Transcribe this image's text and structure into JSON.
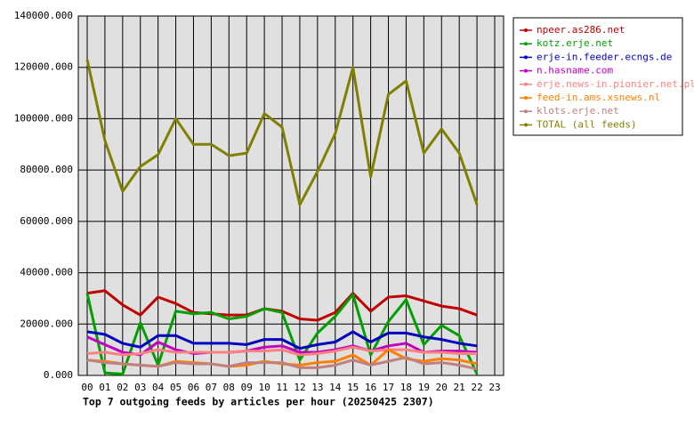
{
  "chart_data": {
    "type": "line",
    "title": "Top 7 outgoing feeds by articles per hour (20250425 2307)",
    "categories": [
      "00",
      "01",
      "02",
      "03",
      "04",
      "05",
      "06",
      "07",
      "08",
      "09",
      "10",
      "11",
      "12",
      "13",
      "14",
      "15",
      "16",
      "17",
      "18",
      "19",
      "20",
      "21",
      "22",
      "23"
    ],
    "ylim": [
      0,
      140000
    ],
    "yticks": [
      {
        "value": 0,
        "label": "0.000"
      },
      {
        "value": 20000,
        "label": "20000.000"
      },
      {
        "value": 40000,
        "label": "40000.000"
      },
      {
        "value": 60000,
        "label": "60000.000"
      },
      {
        "value": 80000,
        "label": "80000.000"
      },
      {
        "value": 100000,
        "label": "100000.000"
      },
      {
        "value": 120000,
        "label": "120000.000"
      },
      {
        "value": 140000,
        "label": "140000.000"
      }
    ],
    "grid": true,
    "legend": "right",
    "series": [
      {
        "name": "npeer.as286.net",
        "color": "#c00000",
        "values": [
          32000,
          33000,
          27500,
          23500,
          30500,
          28000,
          24500,
          24000,
          23500,
          23500,
          26000,
          25000,
          22000,
          21500,
          24500,
          32000,
          25000,
          30500,
          31000,
          29000,
          27000,
          26000,
          23500,
          null
        ]
      },
      {
        "name": "kotz.erje.net",
        "color": "#00a000",
        "values": [
          32000,
          1000,
          500,
          20500,
          4000,
          25000,
          24000,
          24500,
          22000,
          23000,
          26000,
          24500,
          6000,
          16500,
          23000,
          31500,
          8000,
          21000,
          29500,
          12000,
          19500,
          15500,
          500,
          null
        ]
      },
      {
        "name": "erje-in.feeder.ecngs.de",
        "color": "#0000c0",
        "values": [
          17000,
          16000,
          12500,
          11000,
          15500,
          15500,
          12500,
          12500,
          12500,
          12000,
          14000,
          14000,
          10500,
          12000,
          13000,
          17000,
          13000,
          16500,
          16500,
          15000,
          14000,
          12500,
          11500,
          null
        ]
      },
      {
        "name": "n.hasname.com",
        "color": "#c000c0",
        "values": [
          15000,
          12000,
          9000,
          8000,
          13000,
          10000,
          8500,
          9000,
          9000,
          9500,
          11000,
          11500,
          9000,
          9000,
          10000,
          11500,
          9500,
          11500,
          12500,
          9000,
          9500,
          9500,
          9000,
          null
        ]
      },
      {
        "name": "erje.news-in.pionier.net.pl",
        "color": "#ff8080",
        "values": [
          8500,
          9000,
          8000,
          8500,
          10000,
          9000,
          9000,
          9000,
          9000,
          9500,
          9500,
          10000,
          8000,
          8500,
          9500,
          11000,
          9500,
          10000,
          10000,
          9000,
          9000,
          8500,
          8500,
          null
        ]
      },
      {
        "name": "feed-in.ams.xsnews.nl",
        "color": "#ff8000",
        "values": [
          6000,
          5500,
          4500,
          4000,
          3500,
          5500,
          5000,
          4500,
          3500,
          4000,
          5500,
          4500,
          4000,
          5000,
          5500,
          8000,
          4000,
          10000,
          6500,
          5500,
          6500,
          6000,
          4500,
          null
        ]
      },
      {
        "name": "klots.erje.net",
        "color": "#c08080",
        "values": [
          6000,
          5000,
          4500,
          4000,
          3500,
          5000,
          4500,
          4500,
          3500,
          5000,
          5000,
          5000,
          3000,
          3000,
          4000,
          6000,
          4000,
          5500,
          7000,
          4500,
          5000,
          4000,
          2500,
          null
        ]
      },
      {
        "name": "TOTAL (all feeds)",
        "color": "#808000",
        "values": [
          123000,
          91500,
          71700,
          81400,
          86000,
          100000,
          90000,
          90000,
          85600,
          86600,
          102000,
          96700,
          66500,
          79400,
          94200,
          120000,
          77300,
          109500,
          114700,
          86600,
          96000,
          86600,
          66500,
          null
        ]
      }
    ]
  }
}
